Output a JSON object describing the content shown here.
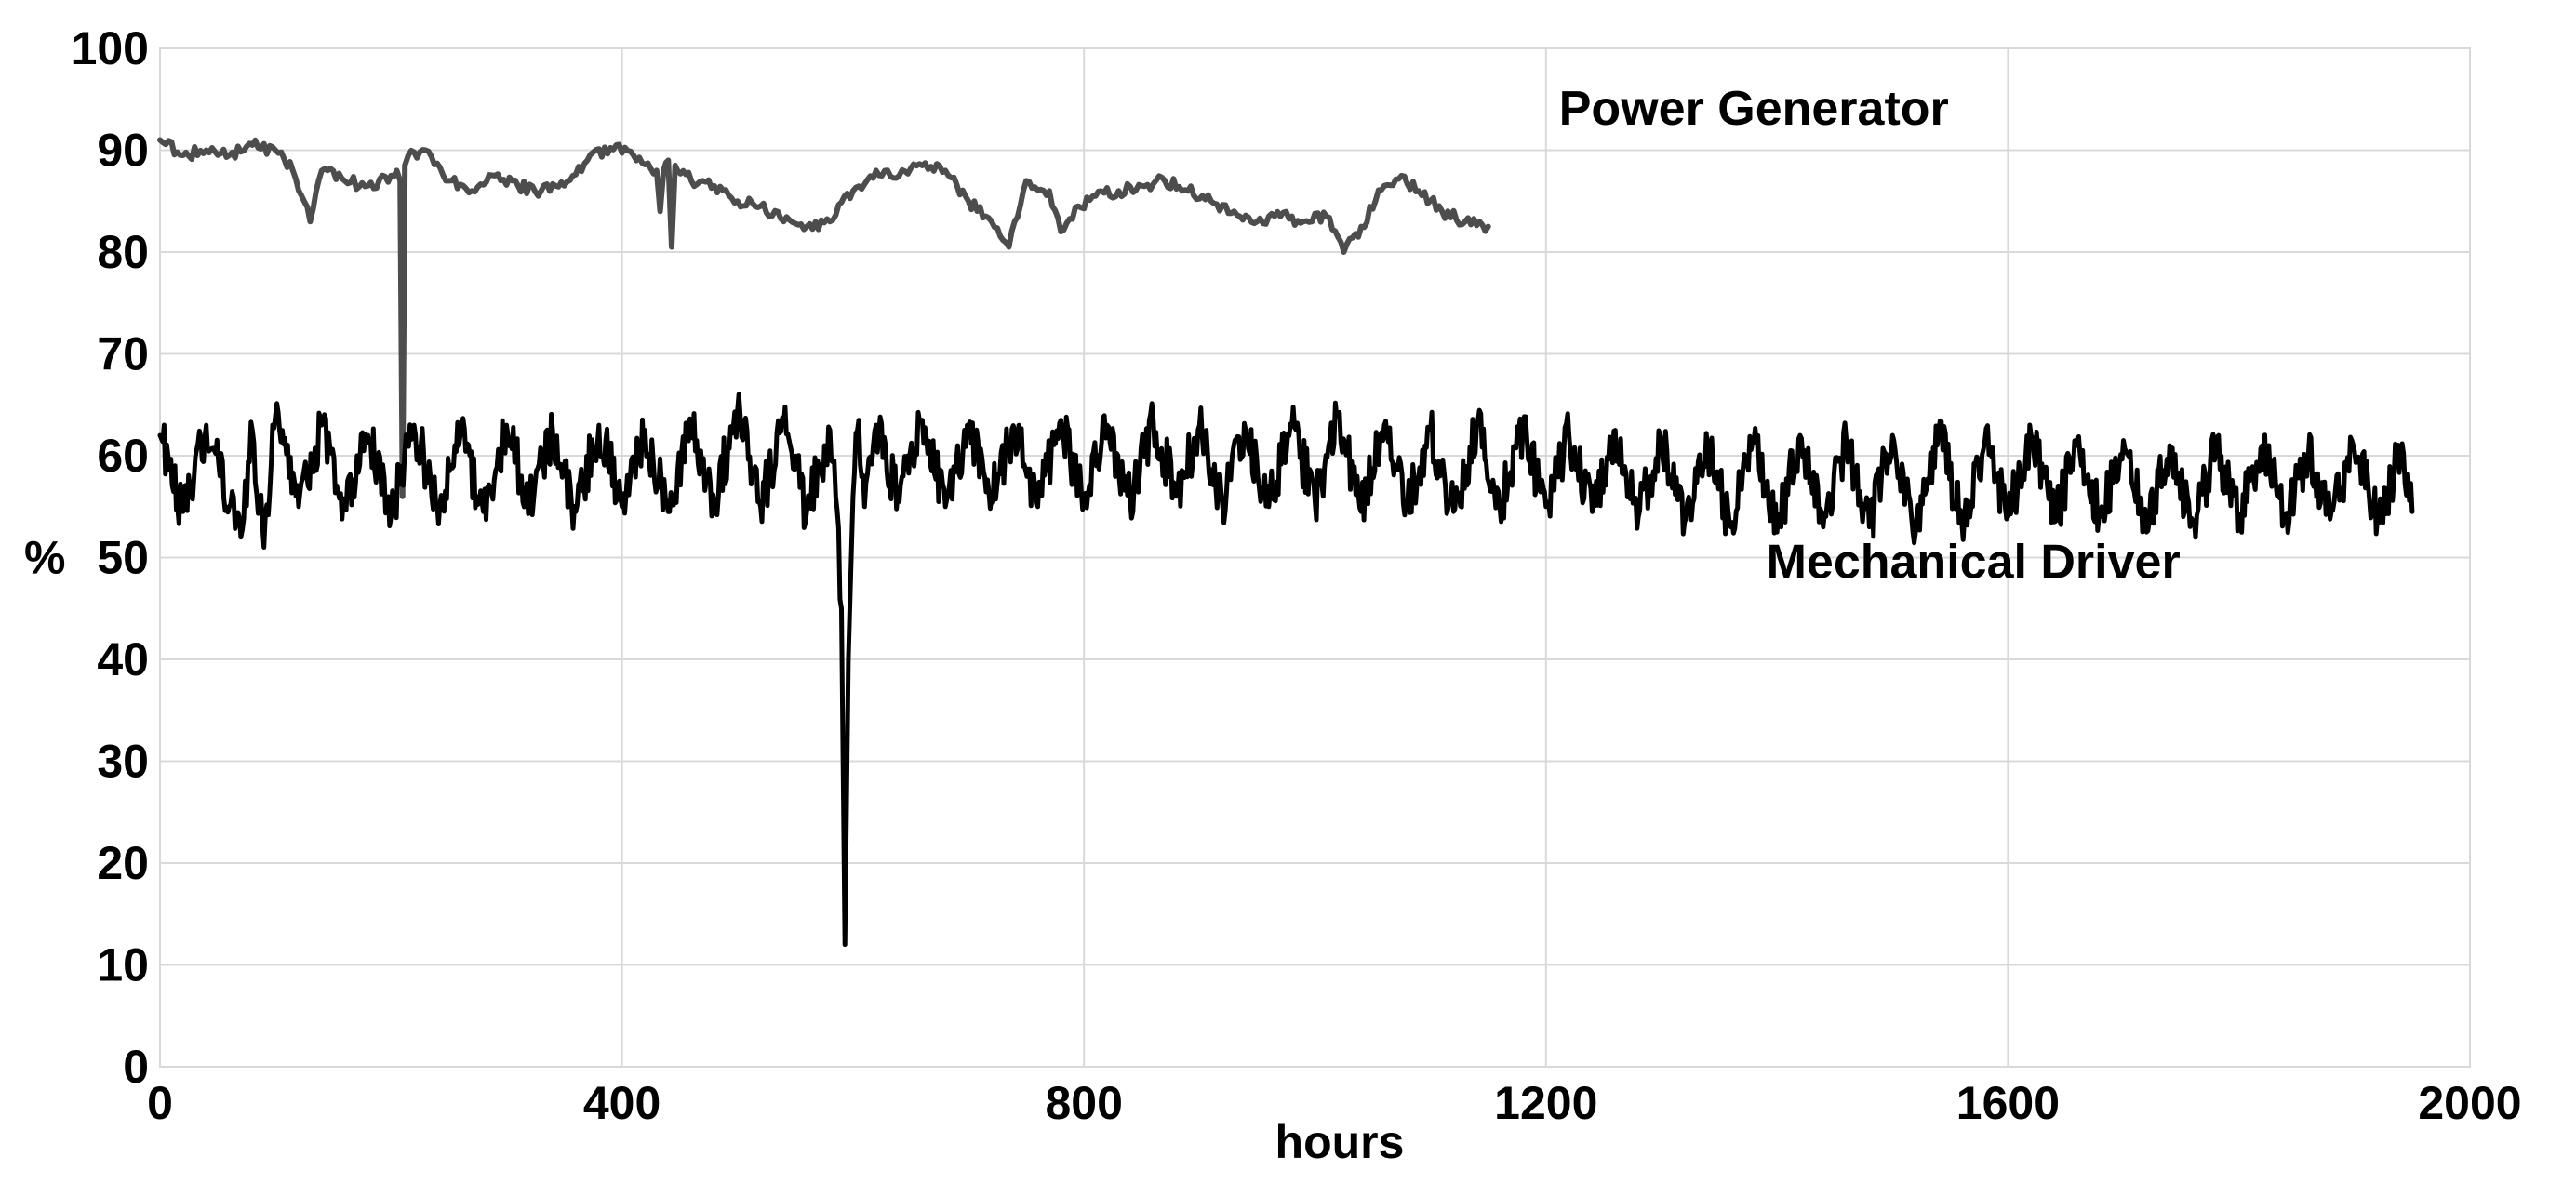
{
  "chart_data": {
    "type": "line",
    "title": "",
    "xlabel": "hours",
    "ylabel": "%",
    "xlim": [
      0,
      2000
    ],
    "ylim": [
      0,
      100
    ],
    "x_ticks": [
      0,
      400,
      800,
      1200,
      1600,
      2000
    ],
    "x_tick_labels": [
      "0",
      "400",
      "800",
      "1200",
      "1600",
      "2000"
    ],
    "y_ticks": [
      0,
      10,
      20,
      30,
      40,
      50,
      60,
      70,
      80,
      90,
      100
    ],
    "y_tick_labels": [
      "0",
      "10",
      "20",
      "30",
      "40",
      "50",
      "60",
      "70",
      "80",
      "90",
      "100"
    ],
    "grid": true,
    "legend": "none",
    "series": [
      {
        "name": "Power Generator",
        "color": "#4d4d4d",
        "x": [
          0,
          20,
          40,
          60,
          80,
          100,
          115,
          130,
          140,
          160,
          180,
          200,
          205,
          208,
          210,
          212,
          215,
          230,
          250,
          270,
          290,
          310,
          330,
          350,
          370,
          395,
          410,
          430,
          433,
          436,
          440,
          443,
          446,
          460,
          480,
          500,
          520,
          540,
          560,
          580,
          600,
          620,
          640,
          660,
          680,
          700,
          720,
          735,
          750,
          770,
          780,
          795,
          810,
          830,
          850,
          870,
          890,
          910,
          930,
          950,
          970,
          990,
          1010,
          1025,
          1040,
          1060,
          1075,
          1090,
          1110,
          1130,
          1150
        ],
        "y": [
          91,
          89.5,
          90,
          89.5,
          90.5,
          90,
          88,
          83,
          88,
          87,
          86.5,
          87.5,
          88,
          87,
          56,
          88.5,
          89.5,
          90,
          87,
          86,
          87.5,
          86.5,
          86,
          86.5,
          89,
          90.5,
          89.5,
          88,
          84,
          88,
          89,
          80.5,
          88.5,
          87,
          86.5,
          85,
          84.5,
          83,
          82.5,
          83,
          86,
          88,
          87.5,
          88.5,
          88,
          85,
          83,
          80.5,
          87,
          86,
          82,
          84.5,
          85.5,
          86,
          86.5,
          87,
          86,
          85,
          84,
          83,
          83.5,
          83,
          83.5,
          80,
          82.5,
          86.5,
          87.5,
          86,
          84,
          83,
          82.5
        ]
      },
      {
        "name": "Mechanical Driver",
        "color": "#000000",
        "x": [
          0,
          20,
          40,
          60,
          70,
          80,
          90,
          100,
          120,
          140,
          160,
          180,
          200,
          220,
          240,
          260,
          280,
          300,
          320,
          340,
          360,
          380,
          400,
          420,
          440,
          460,
          480,
          500,
          520,
          540,
          560,
          580,
          585,
          590,
          593,
          596,
          600,
          605,
          610,
          620,
          640,
          660,
          680,
          700,
          720,
          740,
          760,
          780,
          800,
          820,
          840,
          860,
          880,
          900,
          920,
          940,
          960,
          980,
          1000,
          1020,
          1040,
          1060,
          1080,
          1100,
          1120,
          1140,
          1160,
          1180,
          1200,
          1220,
          1240,
          1260,
          1280,
          1300,
          1320,
          1340,
          1360,
          1380,
          1400,
          1420,
          1440,
          1460,
          1480,
          1500,
          1520,
          1540,
          1560,
          1580,
          1600,
          1620,
          1640,
          1660,
          1680,
          1700,
          1720,
          1740,
          1760,
          1780,
          1800,
          1820,
          1840,
          1860,
          1880,
          1900,
          1920,
          1940,
          1950
        ],
        "y": [
          62,
          54.5,
          63,
          55,
          52,
          62.5,
          51,
          64,
          55,
          63,
          55.5,
          62,
          54,
          63,
          55,
          62,
          54.5,
          63,
          55,
          62.5,
          54.5,
          63,
          55,
          62.5,
          54.5,
          63,
          55.5,
          64.5,
          55,
          63,
          54.5,
          62.5,
          56,
          45,
          12,
          40,
          56,
          63.5,
          55,
          63,
          55.5,
          63.5,
          55,
          63,
          56,
          62.5,
          55,
          63.5,
          55.5,
          63,
          55.5,
          63.5,
          56,
          63,
          55,
          62.5,
          55,
          63,
          55.5,
          64,
          54.5,
          63,
          55,
          62.5,
          54.5,
          63,
          55,
          62.5,
          55,
          62,
          54.5,
          62.5,
          54,
          61.5,
          53.5,
          61,
          53,
          61.5,
          52.5,
          62,
          53,
          61.5,
          53,
          62,
          52.5,
          62.5,
          53.5,
          61.5,
          54,
          62,
          53.5,
          61,
          54,
          61.5,
          52.5,
          61,
          53.5,
          60.5,
          54,
          61,
          54,
          60,
          54.5,
          60.5,
          54,
          60,
          54.5
        ]
      }
    ],
    "annotations": [
      {
        "text": "Power Generator",
        "x": 1380,
        "y": 92.5
      },
      {
        "text": "Mechanical Driver",
        "x": 1570,
        "y": 48
      }
    ]
  }
}
